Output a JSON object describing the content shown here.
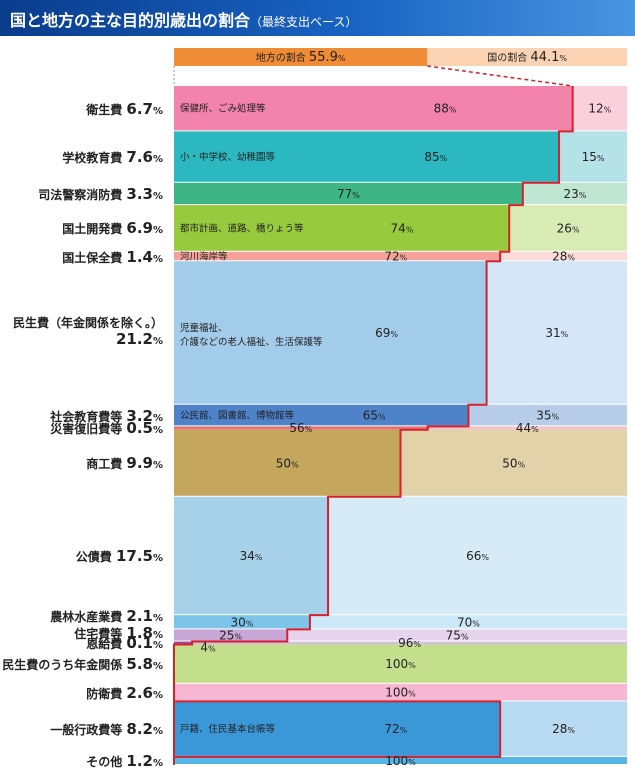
{
  "title": "国と地方の主な目的別歳出の割合",
  "subtitle": "（最終支出ベース）",
  "chart_data": {
    "type": "bar",
    "orientation": "horizontal-stacked-100",
    "title": "国と地方の主な目的別歳出の割合（最終支出ベース）",
    "total": {
      "local_label": "地方の割合",
      "local_value": 55.9,
      "national_label": "国の割合",
      "national_value": 44.1,
      "unit": "%"
    },
    "series": [
      {
        "name": "地方",
        "color": "various"
      },
      {
        "name": "国",
        "color": "various (light)"
      }
    ],
    "categories": [
      {
        "label": "衛生費",
        "share": 6.7,
        "local": 88,
        "national": 12,
        "note": "保健所、ごみ処理等",
        "local_color": "#f283aa",
        "nat_color": "#fbd0dd"
      },
      {
        "label": "学校教育費",
        "share": 7.6,
        "local": 85,
        "national": 15,
        "note": "小・中学校、幼稚園等",
        "local_color": "#2bb8c0",
        "nat_color": "#b4e2e6"
      },
      {
        "label": "司法警察消防費",
        "share": 3.3,
        "local": 77,
        "national": 23,
        "note": "",
        "local_color": "#3db585",
        "nat_color": "#bfe5d3"
      },
      {
        "label": "国土開発費",
        "share": 6.9,
        "local": 74,
        "national": 26,
        "note": "都市計画、道路、橋りょう等",
        "local_color": "#98ca3e",
        "nat_color": "#d9ebb5"
      },
      {
        "label": "国土保全費",
        "share": 1.4,
        "local": 72,
        "national": 28,
        "note": "河川海岸等",
        "local_color": "#f5a29a",
        "nat_color": "#fbdcd8"
      },
      {
        "label": "民生費（年金関係を除く。）",
        "share": 21.2,
        "local": 69,
        "national": 31,
        "note": "児童福祉、介護などの老人福祉、生活保護等",
        "local_color": "#a3cceb",
        "nat_color": "#d4e6f8"
      },
      {
        "label": "社会教育費等",
        "share": 3.2,
        "local": 65,
        "national": 35,
        "note": "公民館、図書館、博物館等",
        "local_color": "#4f83c9",
        "nat_color": "#b7cdea"
      },
      {
        "label": "災害復旧費等",
        "share": 0.5,
        "local": 56,
        "national": 44,
        "note": "",
        "local_color": "#e27474",
        "nat_color": "#f4c4c4"
      },
      {
        "label": "商工費",
        "share": 9.9,
        "local": 50,
        "national": 50,
        "note": "",
        "local_color": "#c4a65c",
        "nat_color": "#e1d2a9"
      },
      {
        "label": "公債費",
        "share": 17.5,
        "local": 34,
        "national": 66,
        "note": "",
        "local_color": "#a6d1e8",
        "nat_color": "#d6ebf6"
      },
      {
        "label": "農林水産業費",
        "share": 2.1,
        "local": 30,
        "national": 70,
        "note": "",
        "local_color": "#7dc4ea",
        "nat_color": "#cde8f6"
      },
      {
        "label": "住宅費等",
        "share": 1.8,
        "local": 25,
        "national": 75,
        "note": "",
        "local_color": "#c8a6d6",
        "nat_color": "#e5d4ec"
      },
      {
        "label": "恩給費",
        "share": 0.1,
        "local": 4,
        "national": 96,
        "note": "",
        "local_color": "#9a4b9e",
        "nat_color": "#d6c0dc"
      },
      {
        "label": "民生費のうち年金関係",
        "share": 5.8,
        "local": 0,
        "national": 100,
        "note": "",
        "local_color": "#c4df8c",
        "nat_color": "#c4df8c"
      },
      {
        "label": "防衛費",
        "share": 2.6,
        "local": 0,
        "national": 100,
        "note": "",
        "local_color": "#f7b6d2",
        "nat_color": "#f7b6d2"
      },
      {
        "label": "一般行政費等",
        "share": 8.2,
        "local": 72,
        "national": 28,
        "note": "戸籍、住民基本台帳等",
        "local_color": "#3b98d8",
        "nat_color": "#b8d9f2"
      },
      {
        "label": "その他",
        "share": 1.2,
        "local": 0,
        "national": 100,
        "note": "",
        "local_color": "#57b6e6",
        "nat_color": "#57b6e6"
      }
    ],
    "xlabel": "",
    "ylabel": "",
    "xlim": [
      0,
      100
    ],
    "legend": "top"
  }
}
